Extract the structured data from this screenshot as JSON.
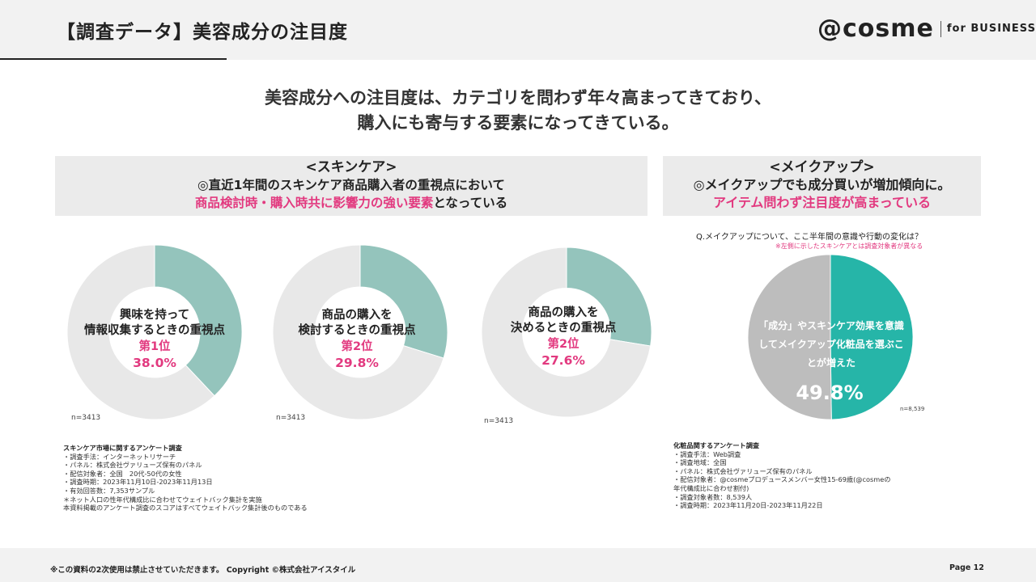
{
  "header": {
    "title": "【調査データ】美容成分の注目度",
    "logo_main": "@cosme",
    "logo_sub": "for BUSINESS"
  },
  "headline": {
    "line1": "美容成分への注目度は、カテゴリを問わず年々高まってきており、",
    "line2": "購入にも寄与する要素になってきている。"
  },
  "skincare": {
    "title": "<スキンケア>",
    "line2": "◎直近1年間のスキンケア商品購入者の重視点において",
    "line3_pink": "商品検討時・購入時共に影響力の強い要素",
    "line3_dark": "となっている"
  },
  "makeup": {
    "title": "<メイクアップ>",
    "line2": "◎メイクアップでも成分買いが増加傾向に。",
    "line3": "アイテム問わず注目度が高まっている",
    "question": "Q.メイクアップについて、ここ半年間の意識や行動の変化は？",
    "note": "※左側に示したスキンケアとは調査対象者が異なる",
    "pie_label_1": "「成分」やスキンケア効果を意識",
    "pie_label_2": "してメイクアップ化粧品を選ぶこ",
    "pie_label_3": "とが増えた",
    "pie_pct": "49.8%",
    "n": "n=8,539"
  },
  "chart_data": [
    {
      "type": "pie",
      "hole": true,
      "label_1": "興味を持って",
      "label_2": "情報収集するときの重視点",
      "rank": "第1位",
      "value_label": "38.0%",
      "values": [
        38.0,
        62.0
      ],
      "colors": [
        "#94c4bc",
        "#e8e8e8"
      ],
      "n": "n=3413"
    },
    {
      "type": "pie",
      "hole": true,
      "label_1": "商品の購入を",
      "label_2": "検討するときの重視点",
      "rank": "第2位",
      "value_label": "29.8%",
      "values": [
        29.8,
        70.2
      ],
      "colors": [
        "#94c4bc",
        "#e8e8e8"
      ],
      "n": "n=3413"
    },
    {
      "type": "pie",
      "hole": true,
      "label_1": "商品の購入を",
      "label_2": "決めるときの重視点",
      "rank": "第2位",
      "value_label": "27.6%",
      "values": [
        27.6,
        72.4
      ],
      "colors": [
        "#94c4bc",
        "#e8e8e8"
      ],
      "n": "n=3413"
    },
    {
      "type": "pie",
      "values": [
        49.8,
        50.2
      ],
      "colors": [
        "#26b5a8",
        "#bdbdbd"
      ]
    }
  ],
  "survey_skin": {
    "title": "スキンケア市場に関するアンケート調査",
    "lines": [
      "・調査手法：インターネットリサーチ",
      "・パネル：株式会社ヴァリューズ保有のパネル",
      "・配信対象者：全国　20代-50代の女性",
      "・調査時期：2023年11月10日-2023年11月13日",
      "・有効回答数：7,353サンプル",
      "＊ネット人口の性年代構成比に合わせてウェイトバック集計を実施",
      "本資料掲載のアンケート調査のスコアはすべてウェイトバック集計後のものである"
    ]
  },
  "survey_make": {
    "title": "化粧品関するアンケート調査",
    "lines": [
      "・調査手法：Web調査",
      "・調査地域：全国",
      "・パネル：株式会社ヴァリューズ保有のパネル",
      "・配信対象者：@cosmeプロデュースメンバー女性15-69歳(@cosmeの",
      "年代構成比に合わせ割付)",
      "・調査対象者数：8,539人",
      "・調査時期：2023年11月20日-2023年11月22日"
    ]
  },
  "footer": {
    "text": "※この資料の2次使用は禁止させていただきます。 Copyright ©株式会社アイスタイル",
    "page": "Page 12"
  }
}
